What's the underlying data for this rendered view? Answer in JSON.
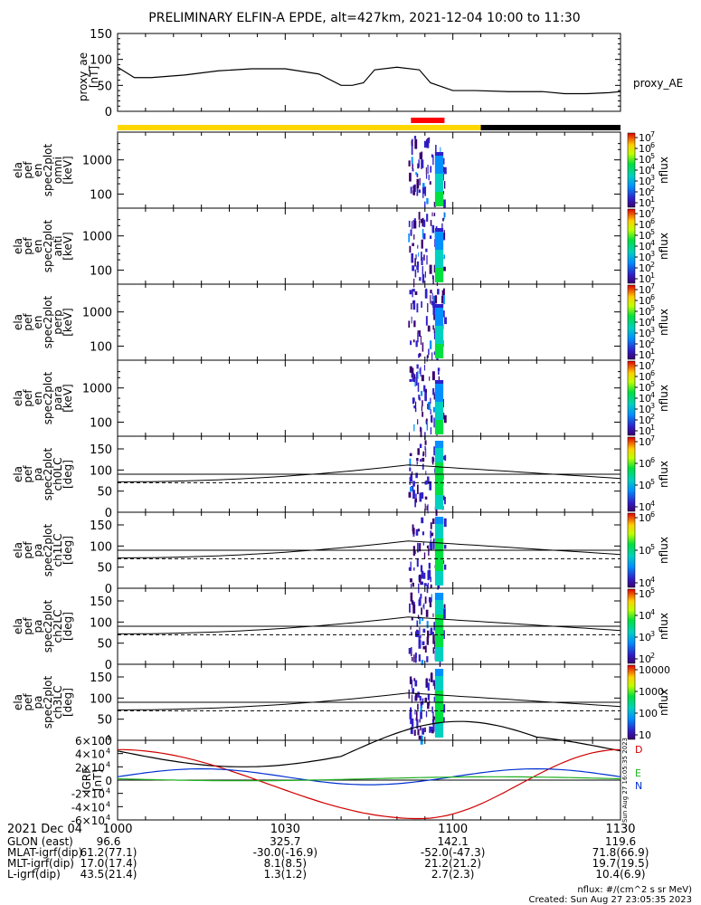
{
  "title": "PRELIMINARY ELFIN-A EPDE, alt=427km, 2021-12-04 10:00 to 11:30",
  "colors": {
    "sunlit_bar": "#ffd700",
    "shadow_bar": "#000000",
    "science_zone_bar": "#ff0000",
    "trace": "#000000"
  },
  "chart_data": [
    {
      "id": "proxy_ae",
      "type": "line",
      "ylabel": [
        "proxy_ae",
        "[nT]"
      ],
      "ylim": [
        0,
        150
      ],
      "yticks": [
        "0",
        "50",
        "100",
        "150"
      ],
      "legend": "proxy_AE",
      "x_minutes": [
        0,
        3,
        6,
        12,
        18,
        24,
        30,
        36,
        40,
        42,
        44,
        46,
        50,
        54,
        56,
        60,
        64,
        70,
        76,
        80,
        84,
        88,
        90
      ],
      "y": [
        85,
        65,
        65,
        70,
        78,
        82,
        82,
        72,
        50,
        50,
        55,
        80,
        85,
        80,
        55,
        40,
        40,
        38,
        38,
        34,
        34,
        36,
        38
      ]
    },
    {
      "id": "omni",
      "type": "heatmap",
      "ylabel": [
        "ela",
        "pef",
        "en",
        "spec2plot",
        "omni",
        "[keV]"
      ],
      "yscale": "log",
      "yticks": [
        "100",
        "1000"
      ],
      "cbar_label": "nflux",
      "cbar_ticks": [
        "10",
        "10",
        "10",
        "10",
        "10",
        "10",
        "10"
      ],
      "cbar_exponents": [
        "1",
        "2",
        "3",
        "4",
        "5",
        "6",
        "7"
      ]
    },
    {
      "id": "anti",
      "type": "heatmap",
      "ylabel": [
        "ela",
        "pef",
        "en",
        "spec2plot",
        "anti",
        "[keV]"
      ],
      "yscale": "log",
      "yticks": [
        "100",
        "1000"
      ],
      "cbar_label": "nflux",
      "cbar_ticks": [
        "10",
        "10",
        "10",
        "10",
        "10",
        "10",
        "10"
      ],
      "cbar_exponents": [
        "1",
        "2",
        "3",
        "4",
        "5",
        "6",
        "7"
      ]
    },
    {
      "id": "perp",
      "type": "heatmap",
      "ylabel": [
        "ela",
        "pef",
        "en",
        "spec2plot",
        "perp",
        "[keV]"
      ],
      "yscale": "log",
      "yticks": [
        "100",
        "1000"
      ],
      "cbar_label": "nflux",
      "cbar_ticks": [
        "10",
        "10",
        "10",
        "10",
        "10",
        "10",
        "10"
      ],
      "cbar_exponents": [
        "1",
        "2",
        "3",
        "4",
        "5",
        "6",
        "7"
      ]
    },
    {
      "id": "para",
      "type": "heatmap",
      "ylabel": [
        "ela",
        "pef",
        "en",
        "spec2plot",
        "para",
        "[keV]"
      ],
      "yscale": "log",
      "yticks": [
        "100",
        "1000"
      ],
      "cbar_label": "nflux",
      "cbar_ticks": [
        "10",
        "10",
        "10",
        "10",
        "10",
        "10",
        "10"
      ],
      "cbar_exponents": [
        "1",
        "2",
        "3",
        "4",
        "5",
        "6",
        "7"
      ]
    },
    {
      "id": "ch0LC",
      "type": "heatmap",
      "ylabel": [
        "ela",
        "pef",
        "pa",
        "spec2plot",
        "ch0LC",
        "[deg]"
      ],
      "yticks": [
        "0",
        "50",
        "100",
        "150"
      ],
      "cbar_label": "nflux",
      "cbar_ticks": [
        "10",
        "10",
        "10",
        "10"
      ],
      "cbar_exponents": [
        "4",
        "5",
        "6",
        "7"
      ]
    },
    {
      "id": "ch1LC",
      "type": "heatmap",
      "ylabel": [
        "ela",
        "pef",
        "pa",
        "spec2plot",
        "ch1LC",
        "[deg]"
      ],
      "yticks": [
        "0",
        "50",
        "100",
        "150"
      ],
      "cbar_label": "nflux",
      "cbar_ticks": [
        "10",
        "10",
        "10"
      ],
      "cbar_exponents": [
        "4",
        "5",
        "6"
      ]
    },
    {
      "id": "ch2LC",
      "type": "heatmap",
      "ylabel": [
        "ela",
        "pef",
        "pa",
        "spec2plot",
        "ch2LC",
        "[deg]"
      ],
      "yticks": [
        "0",
        "50",
        "100",
        "150"
      ],
      "cbar_label": "nflux",
      "cbar_ticks": [
        "10",
        "10",
        "10",
        "10"
      ],
      "cbar_exponents": [
        "2",
        "3",
        "4",
        "5"
      ]
    },
    {
      "id": "ch3LC",
      "type": "heatmap",
      "ylabel": [
        "ela",
        "pef",
        "pa",
        "spec2plot",
        "ch3LC",
        "[deg]"
      ],
      "yticks": [
        "0",
        "50",
        "100",
        "150"
      ],
      "cbar_label": "nflux",
      "cbar_ticks": [
        "10",
        "100",
        "1000",
        "10000"
      ],
      "cbar_exponents": [
        "",
        "",
        "",
        ""
      ]
    },
    {
      "id": "igrf",
      "type": "line",
      "ylabel": [
        "IGRF",
        "[nT]"
      ],
      "ylim": [
        -60000,
        60000
      ],
      "yticks": [
        "-6×10",
        "-4×10",
        "-2×10",
        "0",
        "2×10",
        "4×10",
        "6×10"
      ],
      "ytick_exponent": "4",
      "component_labels": [
        "N",
        "E",
        "D"
      ],
      "stamp": "Sun Aug 27 16:05:35 2023"
    }
  ],
  "xaxis": {
    "ticks": [
      "1000",
      "1030",
      "1100",
      "1130"
    ],
    "header": "2021 Dec 04"
  },
  "ephemeris": [
    {
      "label": "GLON (east)",
      "values": [
        "96.6",
        "325.7",
        "142.1",
        "119.6"
      ]
    },
    {
      "label": "MLAT-igrf(dip)",
      "values": [
        "61.2(77.1)",
        "-30.0(-16.9)",
        "-52.0(-47.3)",
        "71.8(66.9)"
      ]
    },
    {
      "label": "MLT-igrf(dip)",
      "values": [
        "17.0(17.4)",
        "8.1(8.5)",
        "21.2(21.2)",
        "19.7(19.5)"
      ]
    },
    {
      "label": "L-igrf(dip)",
      "values": [
        "43.5(21.4)",
        "1.3(1.2)",
        "2.7(2.3)",
        "10.4(6.9)"
      ]
    }
  ],
  "footer": {
    "units": "nflux: #/(cm^2 s sr MeV)",
    "created": "Created: Sun Aug 27 23:05:35 2023"
  }
}
